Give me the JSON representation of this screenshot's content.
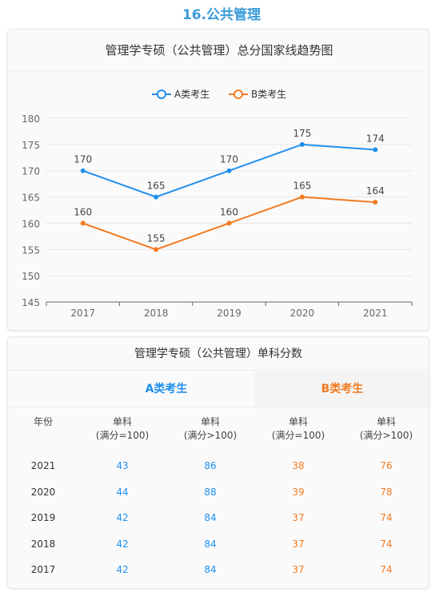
{
  "section_heading": "16.公共管理",
  "chart_data": {
    "type": "line",
    "title": "管理学专硕（公共管理）总分国家线趋势图",
    "categories": [
      "2017",
      "2018",
      "2019",
      "2020",
      "2021"
    ],
    "series": [
      {
        "name": "A类考生",
        "values": [
          170,
          165,
          170,
          175,
          174
        ],
        "color": "#1f8fef"
      },
      {
        "name": "B类考生",
        "values": [
          160,
          155,
          160,
          165,
          164
        ],
        "color": "#f37a20"
      }
    ],
    "yticks": [
      "145",
      "150",
      "155",
      "160",
      "165",
      "170",
      "175",
      "180"
    ],
    "ylim": [
      145,
      180
    ],
    "grid": true,
    "legend": "top-center"
  },
  "table": {
    "title": "管理学专硕（公共管理）单科分数",
    "group_a": "A类考生",
    "group_b": "B类考生",
    "headers": [
      {
        "line1": "年份",
        "line2": ""
      },
      {
        "line1": "单科",
        "line2": "(满分=100)"
      },
      {
        "line1": "单科",
        "line2": "(满分>100)"
      },
      {
        "line1": "单科",
        "line2": "(满分=100)"
      },
      {
        "line1": "单科",
        "line2": "(满分>100)"
      }
    ],
    "rows": [
      {
        "year": "2021",
        "a1": "43",
        "a2": "86",
        "b1": "38",
        "b2": "76"
      },
      {
        "year": "2020",
        "a1": "44",
        "a2": "88",
        "b1": "39",
        "b2": "78"
      },
      {
        "year": "2019",
        "a1": "42",
        "a2": "84",
        "b1": "37",
        "b2": "74"
      },
      {
        "year": "2018",
        "a1": "42",
        "a2": "84",
        "b1": "37",
        "b2": "74"
      },
      {
        "year": "2017",
        "a1": "42",
        "a2": "84",
        "b1": "37",
        "b2": "74"
      }
    ]
  }
}
